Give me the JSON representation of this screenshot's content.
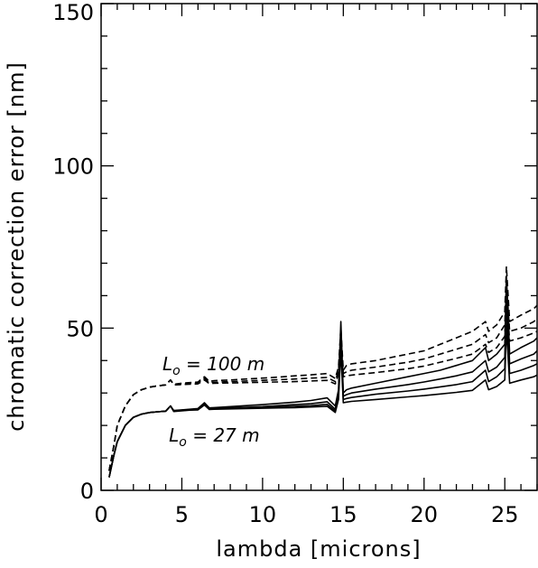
{
  "chart_data": {
    "type": "line",
    "xlabel": "lambda [microns]",
    "ylabel": "chromatic correction error [nm]",
    "xlim": [
      0,
      27
    ],
    "ylim": [
      0,
      150
    ],
    "xticks": [
      0,
      5,
      10,
      15,
      20,
      25
    ],
    "yticks": [
      0,
      50,
      100,
      150
    ],
    "grid": false,
    "series": [
      {
        "style": "dashed",
        "x": [
          0.5,
          0.8,
          1,
          1.5,
          2,
          2.5,
          3,
          3.5,
          4,
          4.3,
          4.5,
          5,
          5.5,
          6,
          6.4,
          6.7,
          7,
          8,
          9,
          10,
          11,
          12,
          13,
          14,
          14.5,
          14.7,
          14.85,
          15,
          15.2,
          15.5,
          17,
          19,
          20,
          21,
          22,
          23,
          23.8,
          24,
          24.5,
          25,
          25.1,
          25.3,
          26,
          26.8,
          27
        ],
        "y": [
          6,
          14,
          20,
          26,
          29.5,
          31,
          31.8,
          32.2,
          32.5,
          34,
          32.7,
          33,
          33.2,
          33.4,
          35,
          33.6,
          33.8,
          34,
          34.3,
          34.6,
          34.9,
          35.3,
          35.6,
          36,
          34.5,
          38,
          50,
          37,
          38.5,
          39,
          40,
          42,
          43,
          45,
          47,
          49,
          52,
          49,
          51,
          55,
          69,
          52,
          54,
          56,
          57
        ]
      },
      {
        "style": "dashed",
        "x": [
          0.5,
          0.8,
          1,
          1.5,
          2,
          2.5,
          3,
          3.5,
          4,
          4.3,
          4.5,
          5,
          5.5,
          6,
          6.4,
          6.7,
          7,
          8,
          9,
          10,
          11,
          12,
          13,
          14,
          14.5,
          14.7,
          14.85,
          15,
          15.2,
          15.5,
          17,
          19,
          20,
          21,
          22,
          23,
          23.8,
          24,
          24.5,
          25,
          25.1,
          25.3,
          26,
          26.8,
          27
        ],
        "y": [
          6,
          14,
          20,
          26,
          29.5,
          31,
          31.8,
          32.2,
          32.5,
          34,
          32.6,
          32.8,
          33,
          33.1,
          34.5,
          33.2,
          33.3,
          33.5,
          33.7,
          33.9,
          34.1,
          34.3,
          34.6,
          34.8,
          33.5,
          37,
          48,
          36,
          36.5,
          37,
          38,
          39.5,
          40.5,
          42,
          43.5,
          45,
          48,
          45.5,
          47,
          51,
          64,
          49,
          50,
          52,
          53
        ]
      },
      {
        "style": "dashed",
        "x": [
          0.5,
          0.8,
          1,
          1.5,
          2,
          2.5,
          3,
          3.5,
          4,
          4.3,
          4.5,
          5,
          5.5,
          6,
          6.4,
          6.7,
          7,
          8,
          9,
          10,
          11,
          12,
          13,
          14,
          14.5,
          14.7,
          14.85,
          15,
          15.2,
          15.5,
          17,
          19,
          20,
          21,
          22,
          23,
          23.8,
          24,
          24.5,
          25,
          25.1,
          25.3,
          26,
          26.8,
          27
        ],
        "y": [
          6,
          14,
          20,
          26,
          29.5,
          31,
          31.8,
          32.2,
          32.5,
          34,
          32.5,
          32.6,
          32.7,
          32.8,
          34,
          32.9,
          33,
          33.1,
          33.2,
          33.3,
          33.4,
          33.5,
          33.7,
          33.9,
          32.8,
          36,
          46,
          35,
          35.3,
          35.5,
          36.3,
          37.5,
          38.3,
          39.5,
          40.7,
          42,
          45,
          42.5,
          44,
          47.5,
          60,
          46,
          47,
          48.5,
          49
        ]
      },
      {
        "style": "solid",
        "x": [
          0.5,
          0.8,
          1,
          1.5,
          2,
          2.5,
          3,
          3.5,
          4,
          4.3,
          4.5,
          5,
          5.5,
          6,
          6.4,
          6.7,
          7,
          8,
          9,
          10,
          11,
          12,
          13,
          14,
          14.5,
          14.7,
          14.85,
          15,
          15.2,
          15.5,
          17,
          19,
          20,
          21,
          22,
          23,
          23.8,
          24,
          24.5,
          25,
          25.1,
          25.3,
          26,
          26.8,
          27
        ],
        "y": [
          4,
          11,
          15,
          20,
          22.5,
          23.5,
          24,
          24.2,
          24.4,
          26,
          24.6,
          24.8,
          25,
          25.2,
          27,
          25.4,
          25.5,
          25.8,
          26.1,
          26.4,
          26.8,
          27.2,
          27.7,
          28.5,
          26,
          31,
          52,
          30,
          31,
          31.5,
          33,
          35,
          36,
          37,
          38.5,
          40,
          44,
          40,
          42,
          45,
          66,
          42,
          44,
          46,
          47
        ]
      },
      {
        "style": "solid",
        "x": [
          0.5,
          0.8,
          1,
          1.5,
          2,
          2.5,
          3,
          3.5,
          4,
          4.3,
          4.5,
          5,
          5.5,
          6,
          6.4,
          6.7,
          7,
          8,
          9,
          10,
          11,
          12,
          13,
          14,
          14.5,
          14.7,
          14.85,
          15,
          15.2,
          15.5,
          17,
          19,
          20,
          21,
          22,
          23,
          23.8,
          24,
          24.5,
          25,
          25.1,
          25.3,
          26,
          26.8,
          27
        ],
        "y": [
          4,
          11,
          15,
          20,
          22.5,
          23.5,
          24,
          24.2,
          24.4,
          26,
          24.5,
          24.7,
          24.9,
          25,
          26.7,
          25.1,
          25.2,
          25.4,
          25.6,
          25.8,
          26.1,
          26.4,
          26.7,
          27.3,
          25,
          30,
          49,
          29,
          29.5,
          30,
          31.2,
          32.6,
          33.4,
          34.3,
          35.3,
          36.5,
          40,
          36.5,
          38,
          41,
          61,
          39,
          40.5,
          42,
          43
        ]
      },
      {
        "style": "solid",
        "x": [
          0.5,
          0.8,
          1,
          1.5,
          2,
          2.5,
          3,
          3.5,
          4,
          4.3,
          4.5,
          5,
          5.5,
          6,
          6.4,
          6.7,
          7,
          8,
          9,
          10,
          11,
          12,
          13,
          14,
          14.5,
          14.7,
          14.85,
          15,
          15.2,
          15.5,
          17,
          19,
          20,
          21,
          22,
          23,
          23.8,
          24,
          24.5,
          25,
          25.1,
          25.3,
          26,
          26.8,
          27
        ],
        "y": [
          4,
          11,
          15,
          20,
          22.5,
          23.5,
          24,
          24.2,
          24.4,
          26,
          24.4,
          24.6,
          24.8,
          24.9,
          26.5,
          25,
          25.1,
          25.2,
          25.4,
          25.5,
          25.7,
          25.9,
          26.1,
          26.5,
          24.5,
          29,
          46,
          28,
          28.3,
          28.6,
          29.6,
          30.6,
          31.2,
          31.9,
          32.6,
          33.5,
          37,
          33.5,
          35,
          37.5,
          56,
          36,
          37,
          38.5,
          39
        ]
      },
      {
        "style": "solid",
        "x": [
          0.5,
          0.8,
          1,
          1.5,
          2,
          2.5,
          3,
          3.5,
          4,
          4.3,
          4.5,
          5,
          5.5,
          6,
          6.4,
          6.7,
          7,
          8,
          9,
          10,
          11,
          12,
          13,
          14,
          14.5,
          14.7,
          14.85,
          15,
          15.2,
          15.5,
          17,
          19,
          20,
          21,
          22,
          23,
          23.8,
          24,
          24.5,
          25,
          25.1,
          25.3,
          26,
          26.8,
          27
        ],
        "y": [
          4,
          11,
          15,
          20,
          22.5,
          23.5,
          24,
          24.2,
          24.4,
          26,
          24.3,
          24.5,
          24.7,
          24.8,
          26.3,
          24.9,
          25,
          25.1,
          25.2,
          25.3,
          25.4,
          25.5,
          25.7,
          25.9,
          24,
          28,
          43,
          27,
          27.2,
          27.4,
          28,
          28.8,
          29.2,
          29.7,
          30.2,
          30.8,
          34,
          31,
          32,
          34,
          50,
          33,
          34,
          35,
          35.5
        ]
      }
    ],
    "annotations": [
      {
        "text_main": "L",
        "text_sub": "o",
        "text_rest": " = 100 m",
        "x": 3.8,
        "y": 37
      },
      {
        "text_main": "L",
        "text_sub": "o",
        "text_rest": " = 27 m",
        "x": 4.2,
        "y": 15
      }
    ]
  }
}
